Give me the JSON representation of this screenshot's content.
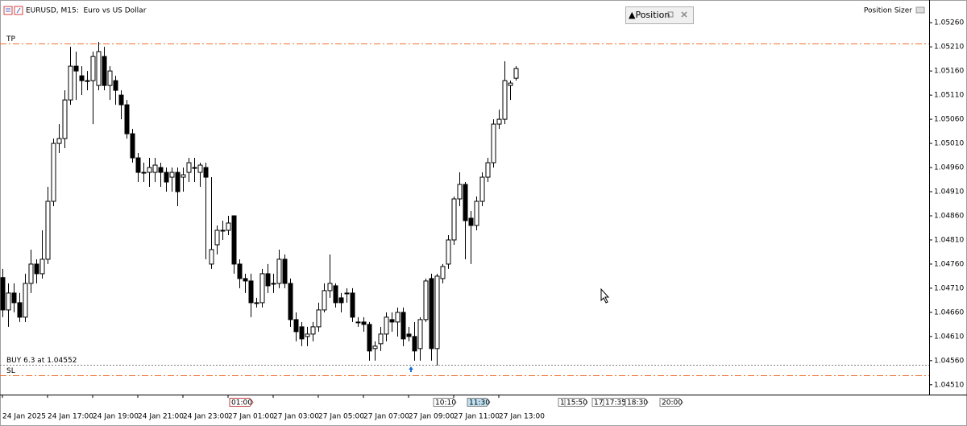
{
  "window": {
    "panel_title": "▲Position",
    "indicator": "Position Sizer",
    "time_markers": [
      "01:00",
      "10:10",
      "11:30",
      "15",
      "15:50",
      "17:",
      "17:35",
      "18:30",
      "20:00"
    ]
  },
  "chart_data": {
    "type": "candlestick",
    "title": "EURUSD, M15:  Euro vs US Dollar",
    "categories": [
      "24 Jan 2025",
      null,
      null,
      null,
      null,
      null,
      null,
      null,
      "24 Jan 17:00",
      null,
      null,
      null,
      null,
      null,
      null,
      null,
      "24 Jan 19:00",
      null,
      null,
      null,
      null,
      null,
      null,
      null,
      "24 Jan 21:00",
      null,
      null,
      null,
      null,
      null,
      null,
      null,
      "24 Jan 23:00",
      null,
      null,
      null,
      null,
      null,
      null,
      null,
      "27 Jan 01:00",
      null,
      null,
      null,
      null,
      null,
      null,
      null,
      "27 Jan 03:00",
      null,
      null,
      null,
      null,
      null,
      null,
      null,
      "27 Jan 05:00",
      null,
      null,
      null,
      null,
      null,
      null,
      null,
      "27 Jan 07:00",
      null,
      null,
      null,
      null,
      null,
      null,
      null,
      "27 Jan 09:00",
      null,
      null,
      null,
      null,
      null,
      null,
      null,
      "27 Jan 11:00",
      null,
      null,
      null,
      null,
      null,
      null,
      null,
      "27 Jan 13:00",
      null,
      null,
      null
    ],
    "open": [
      1.04732,
      1.04665,
      1.047,
      1.0468,
      1.0465,
      1.0472,
      1.0476,
      1.0474,
      1.0477,
      1.0489,
      1.0501,
      1.0502,
      1.051,
      1.0517,
      1.0515,
      1.0514,
      1.0514,
      1.0513,
      1.0519,
      1.0513,
      1.0514,
      1.0511,
      1.0509,
      1.0503,
      1.0498,
      1.0495,
      1.0495,
      1.0495,
      1.0496,
      1.0495,
      1.0494,
      1.0495,
      1.0494,
      1.0495,
      1.0496,
      1.0495,
      1.0496,
      1.0476,
      1.048,
      1.0483,
      1.0483,
      1.0486,
      1.0476,
      1.0473,
      1.04725,
      1.0468,
      1.0468,
      1.0474,
      1.0472,
      1.0472,
      1.0477,
      1.0472,
      1.04645,
      1.0463,
      1.0461,
      1.04615,
      1.0463,
      1.04665,
      1.04705,
      1.04715,
      1.0469,
      1.047,
      1.047,
      1.0464,
      1.0464,
      1.04635,
      1.04585,
      1.04595,
      1.04615,
      1.04645,
      1.0464,
      1.0466,
      1.04615,
      1.0461,
      1.04585,
      1.04645,
      1.0473,
      1.04585,
      1.0473,
      1.0476,
      1.0481,
      1.04895,
      1.04925,
      1.04855,
      1.0484,
      1.0489,
      1.0494,
      1.0497,
      1.0505,
      1.0506,
      1.0513,
      1.05145
    ],
    "high": [
      1.0475,
      1.0472,
      1.0472,
      1.047,
      1.0474,
      1.0479,
      1.0477,
      1.0483,
      1.0492,
      1.0502,
      1.0505,
      1.0512,
      1.0521,
      1.052,
      1.0517,
      1.0516,
      1.052,
      1.0522,
      1.0521,
      1.0517,
      1.0515,
      1.0512,
      1.051,
      1.0504,
      1.0499,
      1.0497,
      1.0498,
      1.0498,
      1.0497,
      1.0496,
      1.0496,
      1.0496,
      1.0496,
      1.0498,
      1.0498,
      1.0497,
      1.0497,
      1.0494,
      1.0484,
      1.0485,
      1.0486,
      1.0486,
      1.0477,
      1.0474,
      1.0474,
      1.0469,
      1.0475,
      1.0476,
      1.0474,
      1.0479,
      1.0478,
      1.0473,
      1.0466,
      1.0464,
      1.0463,
      1.0464,
      1.0468,
      1.0472,
      1.0478,
      1.0472,
      1.047,
      1.0471,
      1.0471,
      1.0465,
      1.0465,
      1.0464,
      1.046,
      1.0463,
      1.0466,
      1.0466,
      1.0467,
      1.0467,
      1.0463,
      1.0464,
      1.0465,
      1.0473,
      1.0474,
      1.0474,
      1.0476,
      1.0482,
      1.049,
      1.0495,
      1.0493,
      1.0487,
      1.049,
      1.0495,
      1.0498,
      1.0506,
      1.0508,
      1.0518,
      1.0514,
      1.0517
    ],
    "low": [
      1.0465,
      1.0463,
      1.0466,
      1.0464,
      1.0464,
      1.047,
      1.0472,
      1.0473,
      1.0476,
      1.0488,
      1.0499,
      1.05,
      1.0509,
      1.051,
      1.0511,
      1.0512,
      1.0505,
      1.0512,
      1.0512,
      1.051,
      1.0509,
      1.0506,
      1.0502,
      1.0497,
      1.0493,
      1.0493,
      1.0492,
      1.0493,
      1.0492,
      1.0491,
      1.0491,
      1.0488,
      1.0491,
      1.0493,
      1.0493,
      1.0492,
      1.0477,
      1.0475,
      1.0478,
      1.0481,
      1.0482,
      1.0474,
      1.0471,
      1.047,
      1.0465,
      1.0467,
      1.0467,
      1.047,
      1.047,
      1.0471,
      1.0471,
      1.0463,
      1.046,
      1.0459,
      1.0459,
      1.046,
      1.0462,
      1.0466,
      1.0469,
      1.0467,
      1.0466,
      1.0468,
      1.0464,
      1.0463,
      1.0462,
      1.0456,
      1.0456,
      1.0458,
      1.046,
      1.0462,
      1.0461,
      1.0459,
      1.046,
      1.0456,
      1.0456,
      1.0464,
      1.0456,
      1.0455,
      1.0472,
      1.0475,
      1.048,
      1.0488,
      1.0477,
      1.0476,
      1.0483,
      1.0488,
      1.0493,
      1.0496,
      1.0504,
      1.0505,
      1.051,
      1.0514
    ],
    "close": [
      1.04665,
      1.047,
      1.0468,
      1.0465,
      1.0472,
      1.0476,
      1.0474,
      1.0477,
      1.0489,
      1.0501,
      1.0502,
      1.051,
      1.0517,
      1.0516,
      1.0514,
      1.0514,
      1.0519,
      1.052,
      1.0513,
      1.0516,
      1.0512,
      1.0509,
      1.0503,
      1.0498,
      1.0495,
      1.0495,
      1.0496,
      1.04965,
      1.0495,
      1.0493,
      1.0495,
      1.0491,
      1.04945,
      1.0497,
      1.0496,
      1.04965,
      1.0494,
      1.0479,
      1.0483,
      1.0483,
      1.04845,
      1.0476,
      1.0473,
      1.04725,
      1.0468,
      1.0468,
      1.0474,
      1.04715,
      1.0472,
      1.0477,
      1.0472,
      1.04645,
      1.0462,
      1.04605,
      1.04615,
      1.0463,
      1.04665,
      1.04705,
      1.0472,
      1.0468,
      1.0468,
      1.047,
      1.0465,
      1.0464,
      1.04635,
      1.0458,
      1.0459,
      1.04615,
      1.0465,
      1.0464,
      1.0466,
      1.04605,
      1.0461,
      1.0458,
      1.04645,
      1.04725,
      1.04585,
      1.04735,
      1.04755,
      1.0481,
      1.04895,
      1.04925,
      1.0485,
      1.0484,
      1.0489,
      1.0494,
      1.0497,
      1.0505,
      1.0506,
      1.0514,
      1.05135,
      1.05165
    ],
    "ylim": [
      1.04493,
      1.05277
    ],
    "yticks": [
      {
        "value": 1.0526,
        "label": "1.05260"
      },
      {
        "value": 1.0521,
        "label": "1.05210"
      },
      {
        "value": 1.0516,
        "label": "1.05160"
      },
      {
        "value": 1.0511,
        "label": "1.05110"
      },
      {
        "value": 1.0506,
        "label": "1.05060"
      },
      {
        "value": 1.0501,
        "label": "1.05010"
      },
      {
        "value": 1.0496,
        "label": "1.04960"
      },
      {
        "value": 1.0491,
        "label": "1.04910"
      },
      {
        "value": 1.0486,
        "label": "1.04860"
      },
      {
        "value": 1.0481,
        "label": "1.04810"
      },
      {
        "value": 1.0476,
        "label": "1.04760"
      },
      {
        "value": 1.0471,
        "label": "1.04710"
      },
      {
        "value": 1.0466,
        "label": "1.04660"
      },
      {
        "value": 1.0461,
        "label": "1.04610"
      },
      {
        "value": 1.0456,
        "label": "1.04560"
      },
      {
        "value": 1.0451,
        "label": "1.04510"
      }
    ],
    "levels": [
      {
        "label": "TP",
        "value": 1.05217,
        "color": "#f07030"
      },
      {
        "label": "BUY 6.3 at 1.04552",
        "value": 1.04552,
        "color": "#808080"
      },
      {
        "label": "SL",
        "value": 1.0453,
        "color": "#f07030"
      }
    ],
    "bull_color": "#ffffff",
    "bear_color": "#000000"
  }
}
